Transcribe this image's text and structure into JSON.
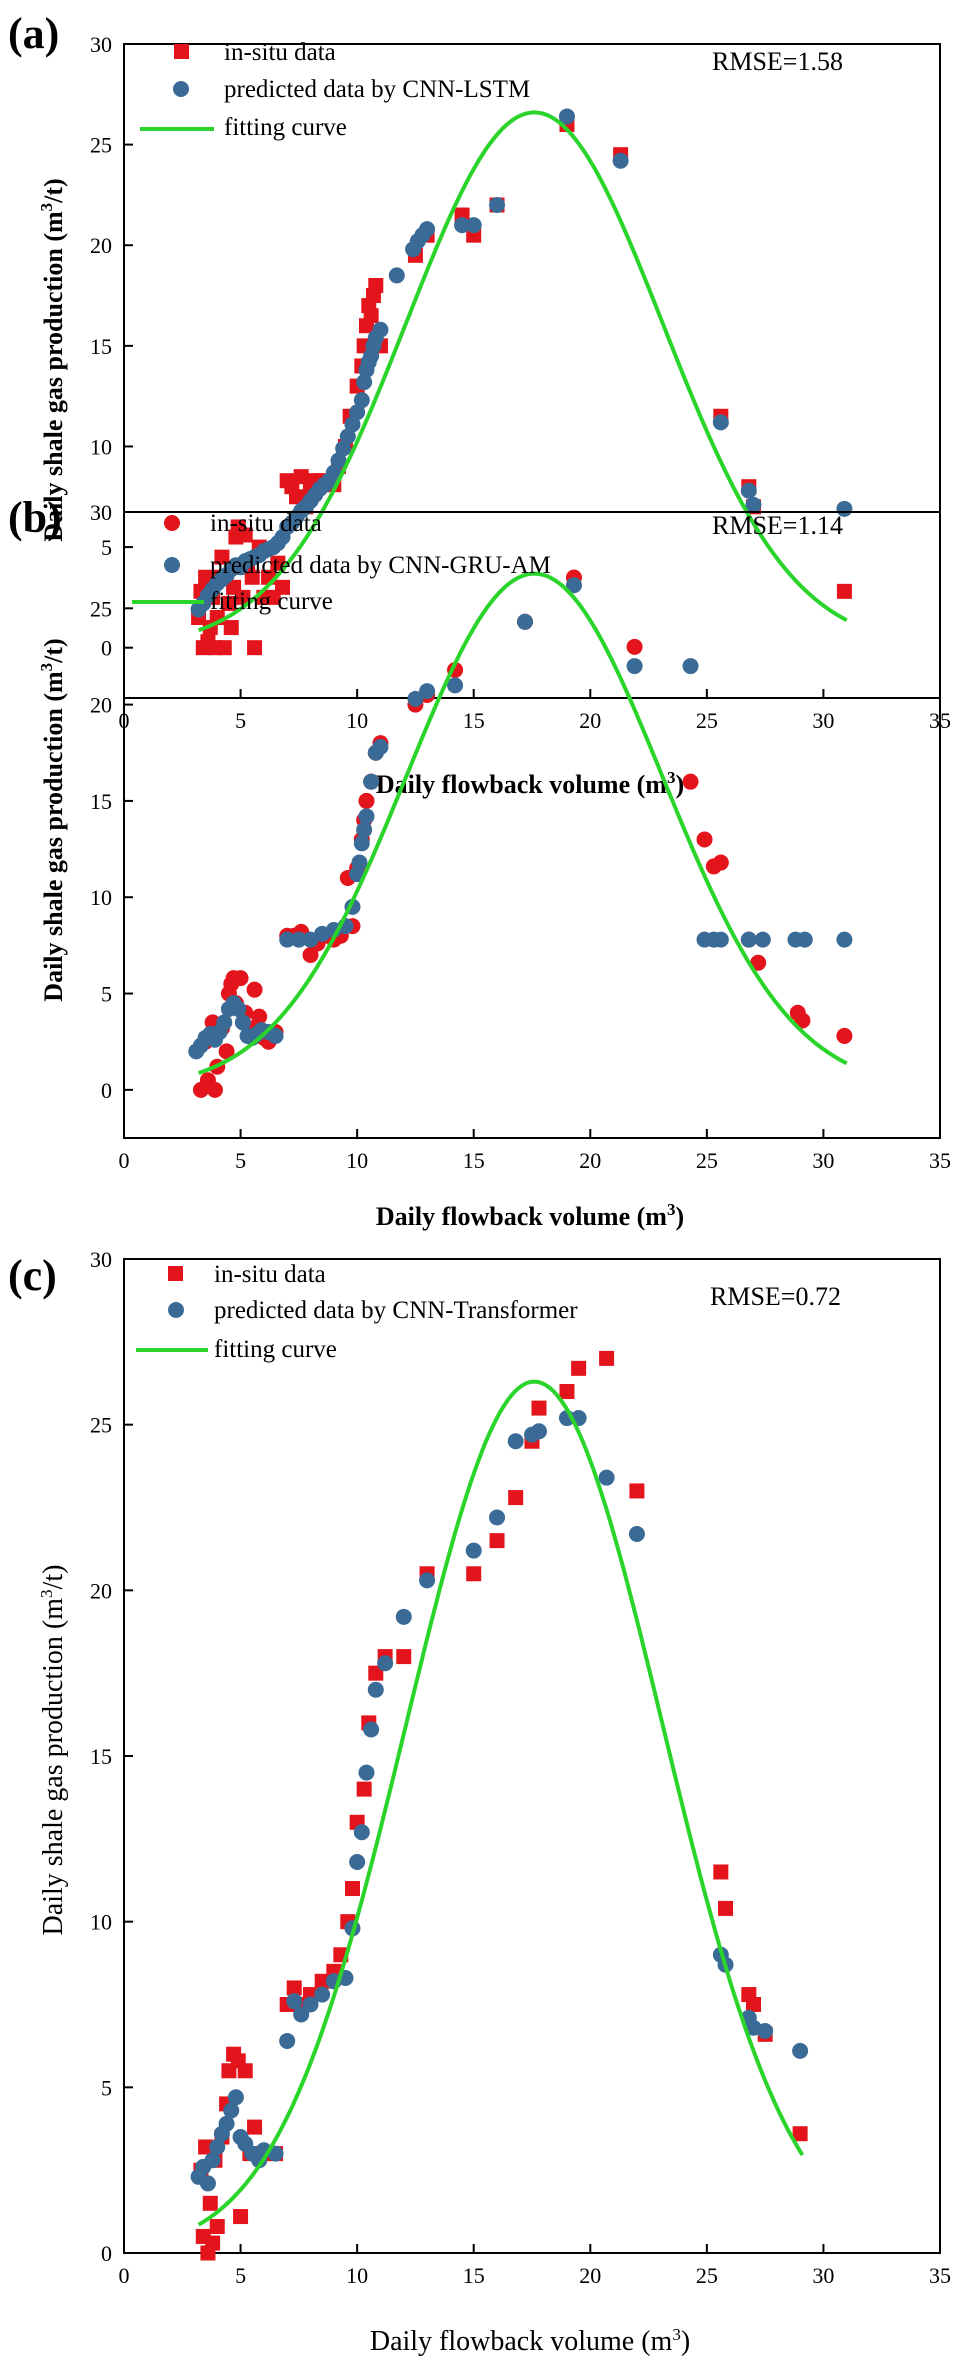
{
  "colors": {
    "insitu": "#e3141b",
    "predicted": "#3a6b96",
    "fit": "#2bd42b",
    "axis": "#000000"
  },
  "chart_data": [
    {
      "type": "scatter",
      "panel_label": "(a)",
      "insitu_marker": "square",
      "rmse": "RMSE=1.58",
      "title": "",
      "xlabel": {
        "main": "Daily flowback volume  (m",
        "sup": "3",
        "close": ")"
      },
      "ylabel": {
        "main": "Daily shale gas production (m",
        "sup": "3",
        "close": "/t)"
      },
      "xlim": [
        0,
        35
      ],
      "ylim": [
        -2.5,
        30
      ],
      "xticks": [
        "0",
        "5",
        "10",
        "15",
        "20",
        "25",
        "30",
        "35"
      ],
      "yticks": [
        "0",
        "5",
        "10",
        "15",
        "20",
        "25",
        "30"
      ],
      "legend": [
        {
          "label": "in-situ data",
          "marker": "square"
        },
        {
          "label": "predicted data by CNN-LSTM",
          "marker": "circle"
        },
        {
          "label": "fitting curve",
          "marker": "line"
        }
      ],
      "fit_curve": {
        "peak_x": 17.6,
        "peak_y": 26.6,
        "sigma": 5.5,
        "x_range": [
          3.2,
          31
        ]
      },
      "insitu": [
        [
          3.2,
          1.5
        ],
        [
          3.3,
          2.8
        ],
        [
          3.4,
          0
        ],
        [
          3.5,
          3.5
        ],
        [
          3.6,
          0.3
        ],
        [
          3.7,
          1
        ],
        [
          3.8,
          2.5
        ],
        [
          3.9,
          0
        ],
        [
          4.0,
          1.5
        ],
        [
          4.1,
          3.5
        ],
        [
          4.2,
          4.5
        ],
        [
          4.3,
          0
        ],
        [
          4.5,
          2.2
        ],
        [
          4.6,
          1
        ],
        [
          4.7,
          3
        ],
        [
          4.8,
          5.5
        ],
        [
          4.9,
          6
        ],
        [
          5.0,
          4
        ],
        [
          5.1,
          2.5
        ],
        [
          5.2,
          5.6
        ],
        [
          5.3,
          4.2
        ],
        [
          5.5,
          3.5
        ],
        [
          5.6,
          0
        ],
        [
          5.8,
          5
        ],
        [
          6.0,
          2.5
        ],
        [
          6.2,
          3.5
        ],
        [
          6.4,
          2.5
        ],
        [
          6.6,
          4.2
        ],
        [
          6.8,
          3
        ],
        [
          7.0,
          8.3
        ],
        [
          7.2,
          8
        ],
        [
          7.4,
          7.5
        ],
        [
          7.6,
          8.5
        ],
        [
          7.8,
          7
        ],
        [
          8.0,
          7.8
        ],
        [
          8.2,
          8.3
        ],
        [
          8.5,
          8.3
        ],
        [
          9.0,
          8.1
        ],
        [
          9.2,
          9
        ],
        [
          9.5,
          10
        ],
        [
          9.7,
          11.5
        ],
        [
          10.0,
          13
        ],
        [
          10.2,
          14
        ],
        [
          10.3,
          15
        ],
        [
          10.4,
          16
        ],
        [
          10.5,
          17
        ],
        [
          10.6,
          16.5
        ],
        [
          10.7,
          17.5
        ],
        [
          10.8,
          18
        ],
        [
          11.0,
          15
        ],
        [
          12.5,
          19.5
        ],
        [
          13.0,
          20.5
        ],
        [
          14.5,
          21.5
        ],
        [
          15.0,
          20.5
        ],
        [
          16.0,
          22
        ],
        [
          19.0,
          26
        ],
        [
          21.3,
          24.5
        ],
        [
          25.6,
          11.5
        ],
        [
          26.8,
          8
        ],
        [
          27.0,
          7
        ],
        [
          30.9,
          2.8
        ]
      ],
      "predicted": [
        [
          3.2,
          1.9
        ],
        [
          3.4,
          2.2
        ],
        [
          3.6,
          2.6
        ],
        [
          3.8,
          2.9
        ],
        [
          4.0,
          3.2
        ],
        [
          4.2,
          3.4
        ],
        [
          4.4,
          3.6
        ],
        [
          4.6,
          3.9
        ],
        [
          4.8,
          4.1
        ],
        [
          5.0,
          4.0
        ],
        [
          5.2,
          4.3
        ],
        [
          5.4,
          4.4
        ],
        [
          5.6,
          4.5
        ],
        [
          5.8,
          4.6
        ],
        [
          6.0,
          4.8
        ],
        [
          6.2,
          4.9
        ],
        [
          6.4,
          5.0
        ],
        [
          6.6,
          5.2
        ],
        [
          6.8,
          5.5
        ],
        [
          7.0,
          6.0
        ],
        [
          7.2,
          6.2
        ],
        [
          7.4,
          6.5
        ],
        [
          7.6,
          6.8
        ],
        [
          7.8,
          7.0
        ],
        [
          8.0,
          7.3
        ],
        [
          8.2,
          7.6
        ],
        [
          8.4,
          7.9
        ],
        [
          8.6,
          8.1
        ],
        [
          8.8,
          8.3
        ],
        [
          9.0,
          8.7
        ],
        [
          9.2,
          9.3
        ],
        [
          9.4,
          9.9
        ],
        [
          9.6,
          10.5
        ],
        [
          9.8,
          11.1
        ],
        [
          10.0,
          11.7
        ],
        [
          10.2,
          12.3
        ],
        [
          10.3,
          13.2
        ],
        [
          10.4,
          13.8
        ],
        [
          10.5,
          14.2
        ],
        [
          10.6,
          14.5
        ],
        [
          10.7,
          15
        ],
        [
          10.8,
          15.4
        ],
        [
          11.0,
          15.8
        ],
        [
          11.7,
          18.5
        ],
        [
          12.4,
          19.8
        ],
        [
          12.6,
          20.2
        ],
        [
          12.8,
          20.5
        ],
        [
          13.0,
          20.8
        ],
        [
          14.5,
          21.0
        ],
        [
          15.0,
          21.0
        ],
        [
          16.0,
          22.0
        ],
        [
          19.0,
          26.4
        ],
        [
          21.3,
          24.2
        ],
        [
          25.6,
          11.2
        ],
        [
          26.8,
          7.8
        ],
        [
          27.0,
          7.1
        ],
        [
          30.9,
          6.9
        ]
      ]
    },
    {
      "type": "scatter",
      "panel_label": "(b)",
      "insitu_marker": "circle",
      "rmse": "RMSE=1.14",
      "title": "",
      "xlabel": {
        "main": "Daily flowback volume (m",
        "sup": "3",
        "close": ")"
      },
      "ylabel": {
        "main": "Daily shale gas production (m",
        "sup": "3",
        "close": "/t)"
      },
      "xlim": [
        0,
        35
      ],
      "ylim": [
        -2.5,
        30
      ],
      "xticks": [
        "0",
        "5",
        "10",
        "15",
        "20",
        "25",
        "30",
        "35"
      ],
      "yticks": [
        "0",
        "5",
        "10",
        "15",
        "20",
        "25",
        "30"
      ],
      "legend": [
        {
          "label": "in-situ data",
          "marker": "circle"
        },
        {
          "label": "predicted data by CNN-GRU-AM",
          "marker": "circle"
        },
        {
          "label": "fitting curve",
          "marker": "line"
        }
      ],
      "fit_curve": {
        "peak_x": 17.6,
        "peak_y": 26.8,
        "sigma": 5.5,
        "x_range": [
          3.2,
          31
        ]
      },
      "insitu": [
        [
          3.3,
          0
        ],
        [
          3.5,
          2.5
        ],
        [
          3.6,
          0.5
        ],
        [
          3.8,
          3.5
        ],
        [
          3.9,
          0
        ],
        [
          4.0,
          1.2
        ],
        [
          4.2,
          3.2
        ],
        [
          4.4,
          2
        ],
        [
          4.5,
          5
        ],
        [
          4.6,
          5.5
        ],
        [
          4.7,
          5.8
        ],
        [
          4.8,
          4.5
        ],
        [
          5.0,
          5.8
        ],
        [
          5.2,
          4
        ],
        [
          5.4,
          3.2
        ],
        [
          5.6,
          5.2
        ],
        [
          5.8,
          3.8
        ],
        [
          6.0,
          2.7
        ],
        [
          6.2,
          2.5
        ],
        [
          6.5,
          3
        ],
        [
          7.0,
          8
        ],
        [
          7.3,
          8
        ],
        [
          7.6,
          8.2
        ],
        [
          8.0,
          7
        ],
        [
          8.3,
          7.6
        ],
        [
          8.6,
          8
        ],
        [
          9.0,
          7.8
        ],
        [
          9.3,
          8
        ],
        [
          9.6,
          11
        ],
        [
          9.8,
          8.5
        ],
        [
          10.0,
          11.5
        ],
        [
          10.2,
          13
        ],
        [
          10.3,
          14
        ],
        [
          10.4,
          15
        ],
        [
          10.6,
          16
        ],
        [
          10.8,
          17.5
        ],
        [
          11.0,
          18
        ],
        [
          12.5,
          20
        ],
        [
          13.0,
          20.5
        ],
        [
          14.2,
          21.8
        ],
        [
          17.2,
          24.3
        ],
        [
          19.3,
          26.6
        ],
        [
          21.9,
          23
        ],
        [
          24.3,
          16
        ],
        [
          24.9,
          13
        ],
        [
          25.3,
          11.6
        ],
        [
          25.6,
          11.8
        ],
        [
          26.8,
          7.8
        ],
        [
          27.2,
          6.6
        ],
        [
          28.9,
          4
        ],
        [
          29.1,
          3.6
        ],
        [
          30.9,
          2.8
        ]
      ],
      "predicted": [
        [
          3.1,
          2.0
        ],
        [
          3.3,
          2.3
        ],
        [
          3.5,
          2.7
        ],
        [
          3.7,
          2.9
        ],
        [
          3.9,
          2.6
        ],
        [
          4.1,
          3.0
        ],
        [
          4.3,
          3.5
        ],
        [
          4.5,
          4.2
        ],
        [
          4.7,
          4.5
        ],
        [
          4.9,
          4.2
        ],
        [
          5.1,
          3.5
        ],
        [
          5.3,
          2.8
        ],
        [
          5.5,
          2.7
        ],
        [
          5.7,
          2.9
        ],
        [
          5.9,
          3.1
        ],
        [
          6.2,
          3.0
        ],
        [
          6.5,
          2.8
        ],
        [
          7.0,
          7.8
        ],
        [
          7.5,
          7.8
        ],
        [
          8.0,
          7.8
        ],
        [
          8.5,
          8.1
        ],
        [
          9.0,
          8.3
        ],
        [
          9.5,
          8.5
        ],
        [
          9.8,
          9.5
        ],
        [
          10.0,
          11.2
        ],
        [
          10.1,
          11.8
        ],
        [
          10.2,
          12.8
        ],
        [
          10.3,
          13.5
        ],
        [
          10.4,
          14.2
        ],
        [
          10.6,
          16
        ],
        [
          10.8,
          17.5
        ],
        [
          11.0,
          17.8
        ],
        [
          12.5,
          20.3
        ],
        [
          13.0,
          20.7
        ],
        [
          14.2,
          21.0
        ],
        [
          17.2,
          24.3
        ],
        [
          19.3,
          26.2
        ],
        [
          21.9,
          22
        ],
        [
          24.3,
          22
        ],
        [
          24.9,
          7.8
        ],
        [
          25.3,
          7.8
        ],
        [
          25.6,
          7.8
        ],
        [
          26.8,
          7.8
        ],
        [
          27.4,
          7.8
        ],
        [
          28.8,
          7.8
        ],
        [
          29.2,
          7.8
        ],
        [
          30.9,
          7.8
        ]
      ]
    },
    {
      "type": "scatter",
      "panel_label": "(c)",
      "insitu_marker": "square",
      "rmse": "RMSE=0.72",
      "title": "",
      "xlabel": {
        "main": "Daily flowback volume (m",
        "sup": "3",
        "close": ")"
      },
      "ylabel": {
        "main": "Daily shale gas production (m",
        "sup": "3",
        "close": "/t)"
      },
      "xlim": [
        0,
        35
      ],
      "ylim": [
        0,
        30
      ],
      "xticks": [
        "0",
        "5",
        "10",
        "15",
        "20",
        "25",
        "30",
        "35"
      ],
      "yticks": [
        "0",
        "5",
        "10",
        "15",
        "20",
        "25",
        "30"
      ],
      "legend": [
        {
          "label": "in-situ data",
          "marker": "square"
        },
        {
          "label": "predicted data by CNN-Transformer",
          "marker": "circle"
        },
        {
          "label": "fitting curve",
          "marker": "line"
        }
      ],
      "fit_curve": {
        "peak_x": 17.6,
        "peak_y": 26.3,
        "sigma": 5.5,
        "x_range": [
          3.2,
          29.1
        ]
      },
      "insitu": [
        [
          3.3,
          2.5
        ],
        [
          3.4,
          0.5
        ],
        [
          3.5,
          3.2
        ],
        [
          3.6,
          0
        ],
        [
          3.7,
          1.5
        ],
        [
          3.8,
          0.3
        ],
        [
          3.9,
          2.8
        ],
        [
          4.0,
          0.8
        ],
        [
          4.2,
          3.5
        ],
        [
          4.4,
          4.5
        ],
        [
          4.5,
          5.5
        ],
        [
          4.7,
          6
        ],
        [
          4.9,
          5.8
        ],
        [
          5.0,
          1.1
        ],
        [
          5.2,
          5.5
        ],
        [
          5.4,
          3
        ],
        [
          5.6,
          3.8
        ],
        [
          6.0,
          3
        ],
        [
          6.5,
          3
        ],
        [
          7.0,
          7.5
        ],
        [
          7.3,
          8
        ],
        [
          7.6,
          7.5
        ],
        [
          8.0,
          7.8
        ],
        [
          8.5,
          8.2
        ],
        [
          9.0,
          8.5
        ],
        [
          9.3,
          9
        ],
        [
          9.6,
          10
        ],
        [
          9.8,
          11
        ],
        [
          10.0,
          13
        ],
        [
          10.3,
          14
        ],
        [
          10.5,
          16
        ],
        [
          10.8,
          17.5
        ],
        [
          11.2,
          18
        ],
        [
          12.0,
          18
        ],
        [
          13.0,
          20.5
        ],
        [
          15.0,
          20.5
        ],
        [
          16.0,
          21.5
        ],
        [
          16.8,
          22.8
        ],
        [
          17.5,
          24.5
        ],
        [
          17.8,
          25.5
        ],
        [
          19.0,
          26
        ],
        [
          19.5,
          26.7
        ],
        [
          20.7,
          27
        ],
        [
          22.0,
          23
        ],
        [
          25.6,
          11.5
        ],
        [
          25.8,
          10.4
        ],
        [
          26.8,
          7.8
        ],
        [
          27.0,
          7.5
        ],
        [
          27.5,
          6.6
        ],
        [
          29.0,
          3.6
        ]
      ],
      "predicted": [
        [
          3.2,
          2.3
        ],
        [
          3.4,
          2.6
        ],
        [
          3.6,
          2.1
        ],
        [
          3.8,
          2.8
        ],
        [
          4.0,
          3.2
        ],
        [
          4.2,
          3.6
        ],
        [
          4.4,
          3.9
        ],
        [
          4.6,
          4.3
        ],
        [
          4.8,
          4.7
        ],
        [
          5.0,
          3.5
        ],
        [
          5.2,
          3.3
        ],
        [
          5.5,
          3.0
        ],
        [
          5.8,
          2.8
        ],
        [
          6.0,
          3.1
        ],
        [
          6.5,
          3.0
        ],
        [
          7.0,
          6.4
        ],
        [
          7.3,
          7.6
        ],
        [
          7.6,
          7.2
        ],
        [
          8.0,
          7.5
        ],
        [
          8.5,
          7.8
        ],
        [
          9.0,
          8.2
        ],
        [
          9.5,
          8.3
        ],
        [
          9.8,
          9.8
        ],
        [
          10.0,
          11.8
        ],
        [
          10.2,
          12.7
        ],
        [
          10.4,
          14.5
        ],
        [
          10.6,
          15.8
        ],
        [
          10.8,
          17.0
        ],
        [
          11.2,
          17.8
        ],
        [
          12.0,
          19.2
        ],
        [
          13.0,
          20.3
        ],
        [
          15.0,
          21.2
        ],
        [
          16.0,
          22.2
        ],
        [
          16.8,
          24.5
        ],
        [
          17.5,
          24.7
        ],
        [
          17.8,
          24.8
        ],
        [
          19.0,
          25.2
        ],
        [
          19.5,
          25.2
        ],
        [
          20.7,
          23.4
        ],
        [
          22.0,
          21.7
        ],
        [
          25.6,
          9.0
        ],
        [
          25.8,
          8.7
        ],
        [
          26.8,
          7.1
        ],
        [
          27.0,
          6.8
        ],
        [
          27.5,
          6.7
        ],
        [
          29.0,
          6.1
        ]
      ]
    }
  ]
}
